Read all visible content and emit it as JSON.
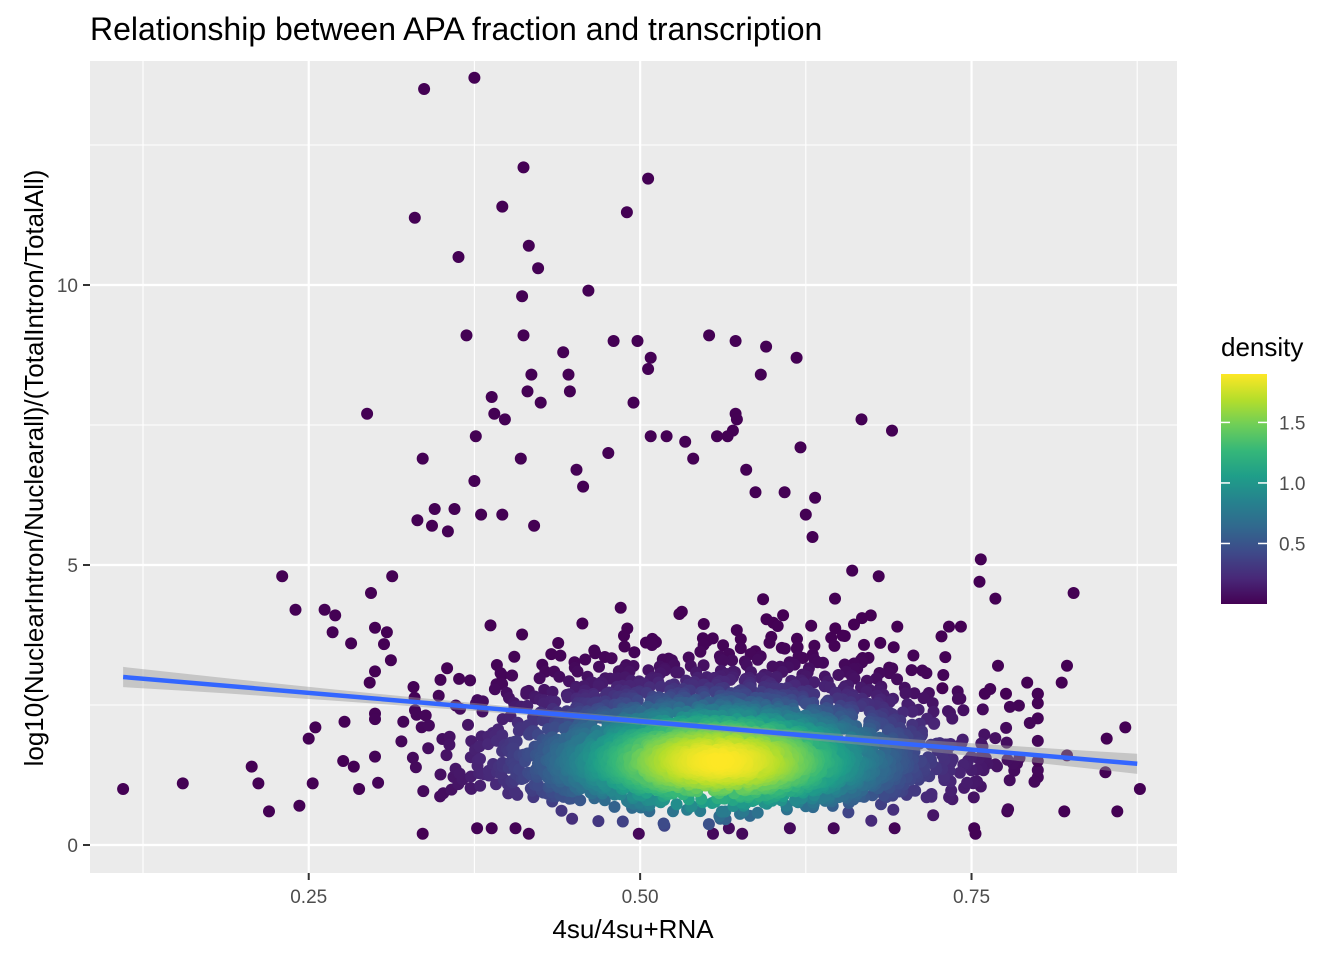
{
  "chart_data": {
    "type": "scatter",
    "title": "Relationship between APA fraction and transcription",
    "xlabel": "4su/4su+RNA",
    "ylabel": "log10(NuclearIntron/Nuclearall)/(TotalIntron/TotalAll)",
    "xlim": [
      0.085,
      0.905
    ],
    "ylim": [
      -0.5,
      14.0
    ],
    "x_ticks": [
      0.25,
      0.5,
      0.75
    ],
    "x_tick_labels": [
      "0.25",
      "0.50",
      "0.75"
    ],
    "y_ticks": [
      0,
      5,
      10
    ],
    "y_tick_labels": [
      "0",
      "5",
      "10"
    ],
    "grid": true,
    "background": "#ebebeb",
    "grid_color": "#ffffff",
    "legend": {
      "title": "density",
      "placement": "right",
      "range": [
        0.0,
        1.9
      ],
      "ticks": [
        0.5,
        1.0,
        1.5
      ],
      "tick_labels": [
        "0.5",
        "1.0",
        "1.5"
      ],
      "colormap": [
        "#440154",
        "#482878",
        "#3e4989",
        "#31688e",
        "#26828e",
        "#1f9e89",
        "#35b779",
        "#6ece58",
        "#b5de2b",
        "#fde725"
      ]
    },
    "smooth": {
      "method": "linear",
      "color": "#3366ff",
      "se_fill": "#999999",
      "x": [
        0.11,
        0.875
      ],
      "y": [
        3.0,
        1.45
      ],
      "se_width": [
        0.18,
        0.06,
        0.18
      ]
    },
    "points": [
      [
        0.375,
        13.7
      ],
      [
        0.337,
        13.5
      ],
      [
        0.412,
        12.1
      ],
      [
        0.506,
        11.9
      ],
      [
        0.396,
        11.4
      ],
      [
        0.33,
        11.2
      ],
      [
        0.49,
        11.3
      ],
      [
        0.416,
        10.7
      ],
      [
        0.363,
        10.5
      ],
      [
        0.423,
        10.3
      ],
      [
        0.461,
        9.9
      ],
      [
        0.411,
        9.8
      ],
      [
        0.369,
        9.1
      ],
      [
        0.412,
        9.1
      ],
      [
        0.552,
        9.1
      ],
      [
        0.572,
        9.0
      ],
      [
        0.498,
        9.0
      ],
      [
        0.48,
        9.0
      ],
      [
        0.595,
        8.9
      ],
      [
        0.508,
        8.7
      ],
      [
        0.442,
        8.8
      ],
      [
        0.618,
        8.7
      ],
      [
        0.506,
        8.5
      ],
      [
        0.591,
        8.4
      ],
      [
        0.418,
        8.4
      ],
      [
        0.446,
        8.4
      ],
      [
        0.415,
        8.1
      ],
      [
        0.447,
        8.1
      ],
      [
        0.388,
        8.0
      ],
      [
        0.425,
        7.9
      ],
      [
        0.495,
        7.9
      ],
      [
        0.39,
        7.7
      ],
      [
        0.398,
        7.6
      ],
      [
        0.572,
        7.7
      ],
      [
        0.573,
        7.6
      ],
      [
        0.667,
        7.6
      ],
      [
        0.69,
        7.4
      ],
      [
        0.294,
        7.7
      ],
      [
        0.376,
        7.3
      ],
      [
        0.508,
        7.3
      ],
      [
        0.52,
        7.3
      ],
      [
        0.558,
        7.3
      ],
      [
        0.534,
        7.2
      ],
      [
        0.57,
        7.4
      ],
      [
        0.621,
        7.1
      ],
      [
        0.566,
        7.3
      ],
      [
        0.336,
        6.9
      ],
      [
        0.41,
        6.9
      ],
      [
        0.54,
        6.9
      ],
      [
        0.58,
        6.7
      ],
      [
        0.452,
        6.7
      ],
      [
        0.476,
        7.0
      ],
      [
        0.375,
        6.5
      ],
      [
        0.457,
        6.4
      ],
      [
        0.632,
        6.2
      ],
      [
        0.587,
        6.3
      ],
      [
        0.609,
        6.3
      ],
      [
        0.36,
        6.0
      ],
      [
        0.343,
        5.7
      ],
      [
        0.355,
        5.6
      ],
      [
        0.332,
        5.8
      ],
      [
        0.396,
        5.9
      ],
      [
        0.42,
        5.7
      ],
      [
        0.38,
        5.9
      ],
      [
        0.345,
        6.0
      ],
      [
        0.625,
        5.9
      ],
      [
        0.63,
        5.5
      ],
      [
        0.262,
        4.2
      ],
      [
        0.24,
        4.2
      ],
      [
        0.23,
        4.8
      ],
      [
        0.27,
        4.1
      ],
      [
        0.313,
        4.8
      ],
      [
        0.297,
        4.5
      ],
      [
        0.268,
        3.8
      ],
      [
        0.282,
        3.6
      ],
      [
        0.312,
        3.3
      ],
      [
        0.309,
        3.8
      ],
      [
        0.296,
        2.9
      ],
      [
        0.3,
        3.1
      ],
      [
        0.757,
        5.1
      ],
      [
        0.756,
        4.7
      ],
      [
        0.768,
        4.4
      ],
      [
        0.827,
        4.5
      ],
      [
        0.68,
        4.8
      ],
      [
        0.66,
        4.9
      ],
      [
        0.647,
        4.4
      ],
      [
        0.674,
        4.1
      ],
      [
        0.694,
        3.9
      ],
      [
        0.733,
        3.9
      ],
      [
        0.742,
        3.9
      ],
      [
        0.77,
        3.2
      ],
      [
        0.822,
        3.2
      ],
      [
        0.818,
        2.9
      ],
      [
        0.792,
        2.9
      ],
      [
        0.728,
        2.8
      ],
      [
        0.76,
        2.7
      ],
      [
        0.776,
        2.7
      ],
      [
        0.8,
        2.7
      ],
      [
        0.11,
        1.0
      ],
      [
        0.155,
        1.1
      ],
      [
        0.207,
        1.4
      ],
      [
        0.212,
        1.1
      ],
      [
        0.22,
        0.6
      ],
      [
        0.243,
        0.7
      ],
      [
        0.25,
        1.9
      ],
      [
        0.255,
        2.1
      ],
      [
        0.253,
        1.1
      ],
      [
        0.277,
        2.2
      ],
      [
        0.276,
        1.5
      ],
      [
        0.284,
        1.4
      ],
      [
        0.288,
        1.0
      ],
      [
        0.866,
        2.1
      ],
      [
        0.852,
        1.9
      ],
      [
        0.877,
        1.0
      ],
      [
        0.86,
        0.6
      ],
      [
        0.851,
        1.3
      ],
      [
        0.822,
        1.6
      ],
      [
        0.82,
        0.6
      ],
      [
        0.8,
        1.5
      ],
      [
        0.777,
        0.6
      ],
      [
        0.753,
        0.2
      ],
      [
        0.752,
        0.3
      ],
      [
        0.336,
        0.2
      ],
      [
        0.377,
        0.3
      ],
      [
        0.388,
        0.3
      ],
      [
        0.406,
        0.3
      ],
      [
        0.416,
        0.2
      ],
      [
        0.499,
        0.2
      ],
      [
        0.555,
        0.2
      ],
      [
        0.567,
        0.3
      ],
      [
        0.577,
        0.2
      ],
      [
        0.613,
        0.3
      ],
      [
        0.646,
        0.3
      ],
      [
        0.692,
        0.3
      ]
    ],
    "cloud": {
      "n_points": 3200,
      "center": [
        0.56,
        1.5
      ],
      "sd": [
        0.085,
        0.85
      ],
      "y_min": 0.2,
      "x_range": [
        0.3,
        0.8
      ]
    }
  }
}
